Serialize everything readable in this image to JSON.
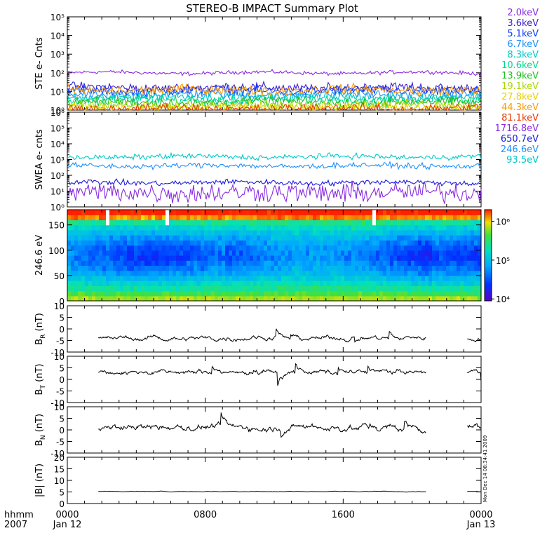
{
  "title": "STEREO-B IMPACT Summary Plot",
  "vertical_stamp": "Mon Dec 14 08:34:41 2009",
  "time_axis": {
    "row1_label": "hhmm",
    "row2_label": "2007",
    "ticks": [
      {
        "hour": 0,
        "label": "0000",
        "date": "Jan 12"
      },
      {
        "hour": 8,
        "label": "0800",
        "date": ""
      },
      {
        "hour": 16,
        "label": "1600",
        "date": ""
      },
      {
        "hour": 24,
        "label": "0000",
        "date": "Jan 13"
      }
    ]
  },
  "ste_legend": [
    {
      "label": "2.0keV",
      "color": "#8a2be2"
    },
    {
      "label": "3.6keV",
      "color": "#3a1fd0"
    },
    {
      "label": "5.1keV",
      "color": "#0a3cff"
    },
    {
      "label": "6.7keV",
      "color": "#1e90ff"
    },
    {
      "label": "8.3keV",
      "color": "#00c8c8"
    },
    {
      "label": "10.6keV",
      "color": "#00d890"
    },
    {
      "label": "13.9keV",
      "color": "#20c020"
    },
    {
      "label": "19.1keV",
      "color": "#a8d800"
    },
    {
      "label": "27.8keV",
      "color": "#e8d000"
    },
    {
      "label": "44.3keV",
      "color": "#ff9a00"
    },
    {
      "label": "81.1keV",
      "color": "#e83a00"
    }
  ],
  "swea_legend": [
    {
      "label": "1716.8eV",
      "color": "#8a2be2"
    },
    {
      "label": "650.7eV",
      "color": "#1a1ae0"
    },
    {
      "label": "246.6eV",
      "color": "#1e8fff"
    },
    {
      "label": "93.5eV",
      "color": "#00c8c8"
    }
  ],
  "chart_data": [
    {
      "type": "line",
      "ylabel": "STE e- Cnts",
      "log_scale": true,
      "ylim": [
        1,
        100000
      ],
      "yticks": [
        1,
        10,
        100,
        1000,
        10000,
        100000
      ],
      "ytick_labels": [
        "10⁰",
        "10¹",
        "10²",
        "10³",
        "10⁴",
        "10⁵"
      ],
      "x_range_hours": [
        0,
        24
      ],
      "series": [
        {
          "name": "2.0keV",
          "level": 100
        },
        {
          "name": "3.6keV",
          "level": 16
        },
        {
          "name": "5.1keV",
          "level": 11
        },
        {
          "name": "6.7keV",
          "level": 7
        },
        {
          "name": "8.3keV",
          "level": 5
        },
        {
          "name": "10.6keV",
          "level": 3.5
        },
        {
          "name": "13.9keV",
          "level": 2.6
        },
        {
          "name": "19.1keV",
          "level": 1.8
        },
        {
          "name": "27.8keV",
          "level": 1.4
        },
        {
          "name": "44.3keV",
          "level": 12
        },
        {
          "name": "81.1keV",
          "level": 1.2
        }
      ]
    },
    {
      "type": "line",
      "ylabel": "SWEA e- cnts",
      "log_scale": true,
      "ylim": [
        1,
        1000000
      ],
      "yticks": [
        1,
        10,
        100,
        1000,
        10000,
        100000,
        1000000
      ],
      "ytick_labels": [
        "10⁰",
        "10¹",
        "10²",
        "10³",
        "10⁴",
        "10⁵",
        "10⁶"
      ],
      "x_range_hours": [
        0,
        24
      ],
      "series": [
        {
          "name": "1716.8eV",
          "level": 8
        },
        {
          "name": "650.7eV",
          "level": 35
        },
        {
          "name": "246.6eV",
          "level": 400
        },
        {
          "name": "93.5eV",
          "level": 1500
        }
      ]
    },
    {
      "type": "heatmap",
      "ylabel": "246.6 eV",
      "ylim": [
        0,
        180
      ],
      "yticks": [
        0,
        50,
        100,
        150
      ],
      "x_range_hours": [
        0,
        24
      ],
      "colorbar_ticks": [
        {
          "value": 10000,
          "label": "10⁴"
        },
        {
          "value": 100000,
          "label": "10⁵"
        },
        {
          "value": 1000000,
          "label": "10⁶"
        }
      ]
    },
    {
      "type": "line",
      "ylabel": "B_R (nT)",
      "ylabel_main": "B",
      "ylabel_sub": "R",
      "ylabel_unit": " (nT)",
      "ylim": [
        -10,
        10
      ],
      "yticks": [
        -10,
        -5,
        0,
        5,
        10
      ],
      "data_start_hour": 1.8,
      "data_end_hour": 20.8,
      "resume_start_hour": 23.2,
      "baseline": -4,
      "variability": 1.2
    },
    {
      "type": "line",
      "ylabel": "B_T (nT)",
      "ylabel_main": "B",
      "ylabel_sub": "T",
      "ylabel_unit": " (nT)",
      "ylim": [
        -10,
        10
      ],
      "yticks": [
        -10,
        -5,
        0,
        5,
        10
      ],
      "data_start_hour": 1.8,
      "data_end_hour": 20.8,
      "resume_start_hour": 23.2,
      "baseline": 3,
      "variability": 1.3
    },
    {
      "type": "line",
      "ylabel": "B_N (nT)",
      "ylabel_main": "B",
      "ylabel_sub": "N",
      "ylabel_unit": " (nT)",
      "ylim": [
        -10,
        10
      ],
      "yticks": [
        -10,
        -5,
        0,
        5,
        10
      ],
      "data_start_hour": 1.8,
      "data_end_hour": 20.8,
      "resume_start_hour": 23.2,
      "baseline": 1,
      "variability": 1.8
    },
    {
      "type": "line",
      "ylabel": "|B| (nT)",
      "ylabel_main": "|B|",
      "ylabel_sub": "",
      "ylabel_unit": " (nT)",
      "ylim": [
        0,
        20
      ],
      "yticks": [
        0,
        5,
        10,
        15,
        20
      ],
      "data_start_hour": 1.8,
      "data_end_hour": 20.8,
      "resume_start_hour": 23.2,
      "baseline": 5.2,
      "variability": 0.15
    }
  ]
}
